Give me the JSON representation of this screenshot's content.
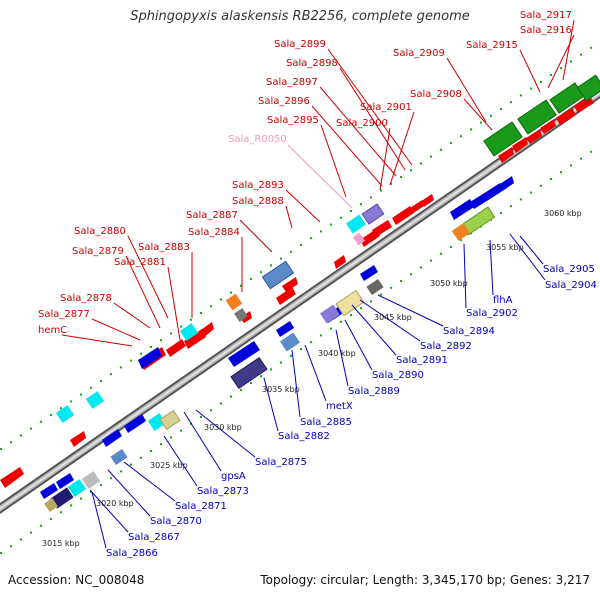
{
  "title": "Sphingopyxis alaskensis RB2256, complete genome",
  "footer": {
    "accession": "Accession: NC_008048",
    "summary": "Topology: circular; Length: 3,345,170 bp; Genes: 3,217"
  },
  "colors": {
    "axis": "#8a8a8a",
    "axis_edge": "#555555",
    "label_top": "#cc0000",
    "label_rna": "#f19ac1",
    "label_bottom": "#0000bb",
    "forward_gene": "#ee0000",
    "reverse_gene": "#0a00dd",
    "dots": "#11aa11"
  },
  "ticks": [
    "3015 kbp",
    "3020 kbp",
    "3025 kbp",
    "3030 kbp",
    "3035 kbp",
    "3040 kbp",
    "3045 kbp",
    "3050 kbp",
    "3055 kbp",
    "3060 kbp"
  ],
  "labels_top": [
    "Sala_2917",
    "Sala_2916",
    "Sala_2915",
    "Sala_2909",
    "Sala_2908",
    "Sala_2899",
    "Sala_2898",
    "Sala_2897",
    "Sala_2896",
    "Sala_2901",
    "Sala_2900",
    "Sala_2895",
    "Sala_2893",
    "Sala_2888",
    "Sala_2887",
    "Sala_2884",
    "Sala_2880",
    "Sala_2883",
    "Sala_2879",
    "Sala_2881",
    "Sala_2878",
    "Sala_2877",
    "hemC"
  ],
  "label_rna": "Sala_R0050",
  "labels_bottom": [
    "Sala_2905",
    "Sala_2904",
    "flhA",
    "Sala_2902",
    "Sala_2894",
    "Sala_2892",
    "Sala_2891",
    "Sala_2890",
    "Sala_2889",
    "metX",
    "Sala_2885",
    "Sala_2882",
    "Sala_2875",
    "gpsA",
    "Sala_2873",
    "Sala_2871",
    "Sala_2870",
    "Sala_2867",
    "Sala_2866"
  ]
}
